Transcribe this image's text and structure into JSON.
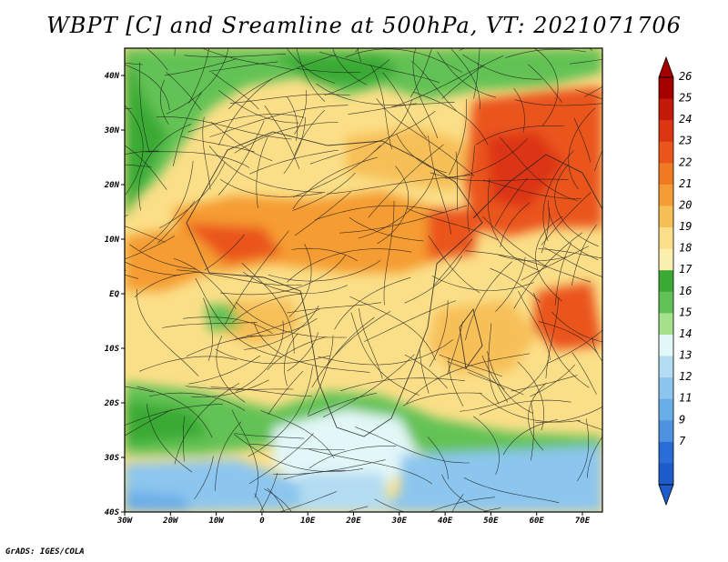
{
  "title": "WBPT [C] and Sreamline at 500hPa, VT: 2021071706",
  "footer": "GrADS: IGES/COLA",
  "map": {
    "lat_labels": [
      "40N",
      "30N",
      "20N",
      "10N",
      "EQ",
      "10S",
      "20S",
      "30S",
      "40S"
    ],
    "lon_labels": [
      "30W",
      "20W",
      "10W",
      "0",
      "10E",
      "20E",
      "30E",
      "40E",
      "50E",
      "60E",
      "70E"
    ]
  },
  "colorbar": {
    "labels": [
      "26",
      "25",
      "24",
      "23",
      "22",
      "21",
      "20",
      "19",
      "18",
      "17",
      "16",
      "15",
      "14",
      "13",
      "12",
      "11",
      "9",
      "7"
    ],
    "colors": [
      "#a50000",
      "#c41a0a",
      "#dc3512",
      "#ea551b",
      "#f07a22",
      "#f59c33",
      "#f7bf58",
      "#fbdf88",
      "#fbf0b0",
      "#3aaa35",
      "#63c255",
      "#a5e08a",
      "#e2f7f7",
      "#b3dcf2",
      "#8cc6ee",
      "#6aaee8",
      "#4d93e0",
      "#2b6dd6",
      "#1e5ccc"
    ],
    "top_color": "#a50000",
    "bottom_color": "#1e5ccc"
  }
}
